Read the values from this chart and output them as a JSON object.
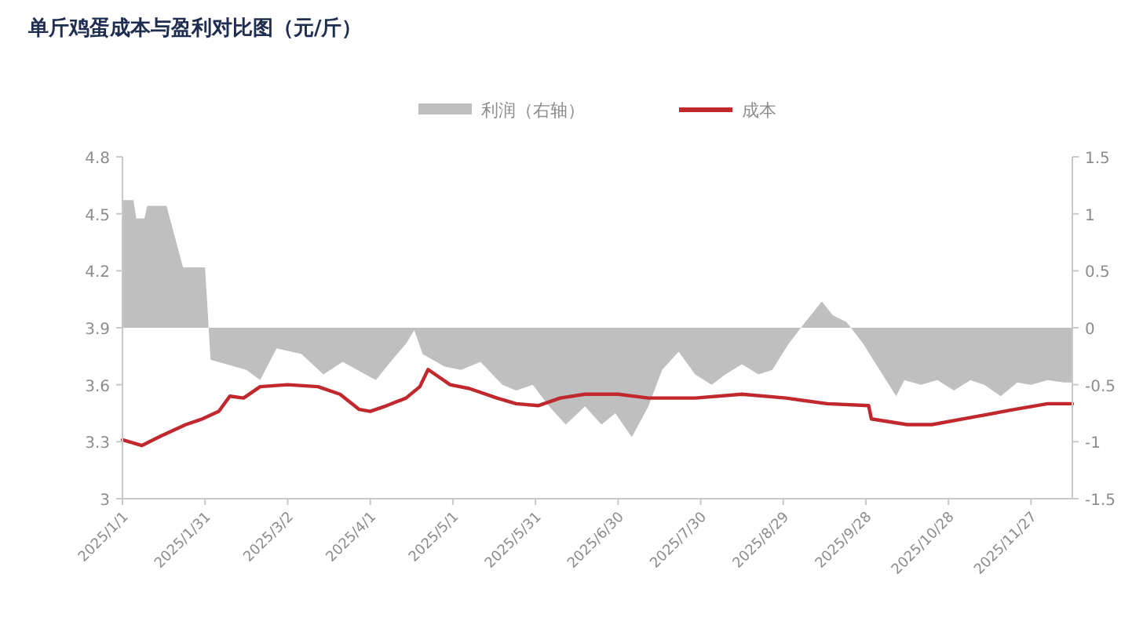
{
  "chart_data": {
    "type": "line",
    "title": "单斤鸡蛋成本与盈利对比图（元/斤）",
    "legend": "top",
    "xlim": [
      "2025-01-01",
      "2025-12-12"
    ],
    "xticks": [
      {
        "value": "2025-01-01",
        "label": "2025/1/1"
      },
      {
        "value": "2025-01-31",
        "label": "2025/1/31"
      },
      {
        "value": "2025-03-02",
        "label": "2025/3/2"
      },
      {
        "value": "2025-04-01",
        "label": "2025/4/1"
      },
      {
        "value": "2025-05-01",
        "label": "2025/5/1"
      },
      {
        "value": "2025-05-31",
        "label": "2025/5/31"
      },
      {
        "value": "2025-06-30",
        "label": "2025/6/30"
      },
      {
        "value": "2025-07-30",
        "label": "2025/7/30"
      },
      {
        "value": "2025-08-29",
        "label": "2025/8/29"
      },
      {
        "value": "2025-09-28",
        "label": "2025/9/28"
      },
      {
        "value": "2025-10-28",
        "label": "2025/10/28"
      },
      {
        "value": "2025-11-27",
        "label": "2025/11/27"
      }
    ],
    "ylim": [
      3,
      4.8
    ],
    "yticks": [
      3,
      3.3,
      3.6,
      3.9,
      4.2,
      4.5,
      4.8
    ],
    "y2lim": [
      -1.5,
      1.5
    ],
    "y2ticks": [
      -1.5,
      -1,
      -0.5,
      0,
      0.5,
      1,
      1.5
    ],
    "series": [
      {
        "name": "利润（右轴）",
        "type": "area",
        "axis": "y2",
        "color": "#bfbfbf",
        "x": [
          "2025-01-01",
          "2025-01-05",
          "2025-01-06",
          "2025-01-09",
          "2025-01-10",
          "2025-01-17",
          "2025-01-23",
          "2025-01-31",
          "2025-02-02",
          "2025-02-15",
          "2025-02-20",
          "2025-02-26",
          "2025-03-07",
          "2025-03-15",
          "2025-03-22",
          "2025-04-03",
          "2025-04-09",
          "2025-04-14",
          "2025-04-17",
          "2025-04-20",
          "2025-04-28",
          "2025-05-04",
          "2025-05-11",
          "2025-05-19",
          "2025-05-24",
          "2025-05-30",
          "2025-06-05",
          "2025-06-11",
          "2025-06-18",
          "2025-06-24",
          "2025-06-29",
          "2025-07-05",
          "2025-07-11",
          "2025-07-16",
          "2025-07-22",
          "2025-07-28",
          "2025-08-03",
          "2025-08-08",
          "2025-08-14",
          "2025-08-20",
          "2025-08-25",
          "2025-08-31",
          "2025-09-06",
          "2025-09-12",
          "2025-09-16",
          "2025-09-21",
          "2025-09-27",
          "2025-10-03",
          "2025-10-09",
          "2025-10-12",
          "2025-10-18",
          "2025-10-24",
          "2025-10-30",
          "2025-11-05",
          "2025-11-10",
          "2025-11-16",
          "2025-11-22",
          "2025-11-27",
          "2025-12-03",
          "2025-12-09",
          "2025-12-12"
        ],
        "values": [
          1.12,
          1.12,
          0.96,
          0.96,
          1.07,
          1.07,
          0.53,
          0.53,
          -0.28,
          -0.37,
          -0.46,
          -0.18,
          -0.23,
          -0.41,
          -0.3,
          -0.46,
          -0.28,
          -0.14,
          -0.02,
          -0.23,
          -0.34,
          -0.37,
          -0.3,
          -0.5,
          -0.55,
          -0.5,
          -0.69,
          -0.85,
          -0.69,
          -0.85,
          -0.75,
          -0.96,
          -0.69,
          -0.37,
          -0.21,
          -0.41,
          -0.5,
          -0.41,
          -0.32,
          -0.41,
          -0.37,
          -0.14,
          0.05,
          0.23,
          0.11,
          0.05,
          -0.14,
          -0.37,
          -0.6,
          -0.46,
          -0.5,
          -0.46,
          -0.55,
          -0.46,
          -0.5,
          -0.6,
          -0.48,
          -0.5,
          -0.46,
          -0.48,
          -0.48
        ]
      },
      {
        "name": "成本",
        "color": "#c0282d",
        "x": [
          "2025-01-01",
          "2025-01-08",
          "2025-01-15",
          "2025-01-24",
          "2025-01-30",
          "2025-02-05",
          "2025-02-09",
          "2025-02-14",
          "2025-02-20",
          "2025-03-02",
          "2025-03-13",
          "2025-03-21",
          "2025-03-28",
          "2025-04-01",
          "2025-04-07",
          "2025-04-14",
          "2025-04-19",
          "2025-04-22",
          "2025-04-25",
          "2025-04-30",
          "2025-05-07",
          "2025-05-17",
          "2025-05-24",
          "2025-06-01",
          "2025-06-09",
          "2025-06-18",
          "2025-06-30",
          "2025-07-11",
          "2025-07-28",
          "2025-08-14",
          "2025-08-30",
          "2025-09-14",
          "2025-09-29",
          "2025-09-30",
          "2025-10-13",
          "2025-10-22",
          "2025-11-06",
          "2025-11-21",
          "2025-12-03",
          "2025-12-12"
        ],
        "values": [
          3.31,
          3.28,
          3.33,
          3.39,
          3.42,
          3.46,
          3.54,
          3.53,
          3.59,
          3.6,
          3.59,
          3.55,
          3.47,
          3.46,
          3.49,
          3.53,
          3.59,
          3.68,
          3.65,
          3.6,
          3.58,
          3.53,
          3.5,
          3.49,
          3.53,
          3.55,
          3.55,
          3.53,
          3.53,
          3.55,
          3.53,
          3.5,
          3.49,
          3.42,
          3.39,
          3.39,
          3.43,
          3.47,
          3.5,
          3.5
        ]
      }
    ]
  }
}
